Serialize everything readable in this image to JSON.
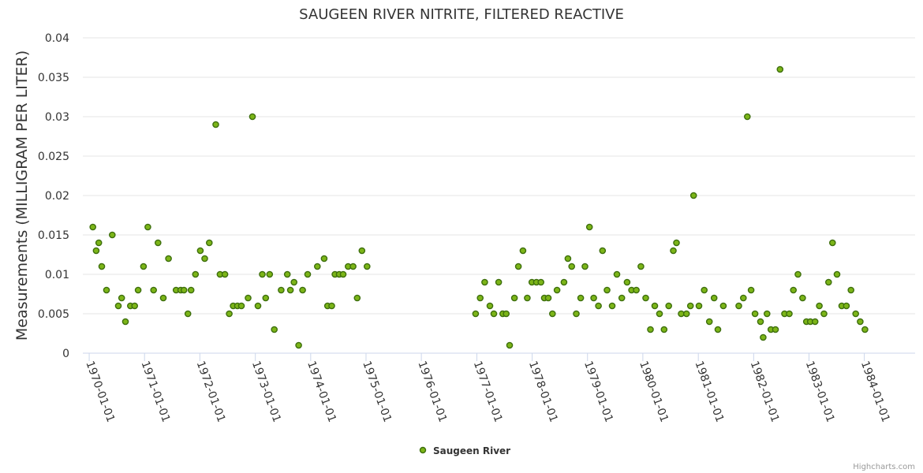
{
  "chart_data": {
    "type": "scatter",
    "title": "SAUGEEN RIVER NITRITE, FILTERED REACTIVE",
    "ylabel": "Measurements (MILLIGRAM PER LITER)",
    "xlabel": "",
    "ylim": [
      0,
      0.04
    ],
    "xlim": [
      "1969-11-20",
      "1984-12-01"
    ],
    "y_ticks": [
      "0",
      "0.005",
      "0.01",
      "0.015",
      "0.02",
      "0.025",
      "0.03",
      "0.035",
      "0.04"
    ],
    "x_ticks": [
      "1970-01-01",
      "1971-01-01",
      "1972-01-01",
      "1973-01-01",
      "1974-01-01",
      "1975-01-01",
      "1976-01-01",
      "1977-01-01",
      "1978-01-01",
      "1979-01-01",
      "1980-01-01",
      "1981-01-01",
      "1982-01-01",
      "1983-01-01",
      "1984-01-01"
    ],
    "grid": true,
    "legend_position": "bottom-center",
    "series_color": "#7cb518",
    "marker_stroke": "#3d6e0d",
    "series": [
      {
        "name": "Saugeen River",
        "points": [
          {
            "x": "1970-01-25",
            "y": 0.016
          },
          {
            "x": "1970-02-16",
            "y": 0.013
          },
          {
            "x": "1970-03-05",
            "y": 0.014
          },
          {
            "x": "1970-03-25",
            "y": 0.011
          },
          {
            "x": "1970-04-25",
            "y": 0.008
          },
          {
            "x": "1970-06-02",
            "y": 0.015
          },
          {
            "x": "1970-07-12",
            "y": 0.006
          },
          {
            "x": "1970-08-03",
            "y": 0.007
          },
          {
            "x": "1970-08-28",
            "y": 0.004
          },
          {
            "x": "1970-09-30",
            "y": 0.006
          },
          {
            "x": "1970-10-28",
            "y": 0.006
          },
          {
            "x": "1970-11-20",
            "y": 0.008
          },
          {
            "x": "1970-12-25",
            "y": 0.011
          },
          {
            "x": "1971-01-23",
            "y": 0.016
          },
          {
            "x": "1971-03-02",
            "y": 0.008
          },
          {
            "x": "1971-03-31",
            "y": 0.014
          },
          {
            "x": "1971-05-05",
            "y": 0.007
          },
          {
            "x": "1971-06-08",
            "y": 0.012
          },
          {
            "x": "1971-07-28",
            "y": 0.008
          },
          {
            "x": "1971-08-28",
            "y": 0.008
          },
          {
            "x": "1971-09-18",
            "y": 0.008
          },
          {
            "x": "1971-10-14",
            "y": 0.005
          },
          {
            "x": "1971-11-04",
            "y": 0.008
          },
          {
            "x": "1971-12-03",
            "y": 0.01
          },
          {
            "x": "1972-01-04",
            "y": 0.013
          },
          {
            "x": "1972-02-02",
            "y": 0.012
          },
          {
            "x": "1972-03-03",
            "y": 0.014
          },
          {
            "x": "1972-04-15",
            "y": 0.029
          },
          {
            "x": "1972-05-13",
            "y": 0.01
          },
          {
            "x": "1972-06-14",
            "y": 0.01
          },
          {
            "x": "1972-07-13",
            "y": 0.005
          },
          {
            "x": "1972-08-08",
            "y": 0.006
          },
          {
            "x": "1972-09-05",
            "y": 0.006
          },
          {
            "x": "1972-10-01",
            "y": 0.006
          },
          {
            "x": "1972-11-14",
            "y": 0.007
          },
          {
            "x": "1972-12-13",
            "y": 0.03
          },
          {
            "x": "1973-01-18",
            "y": 0.006
          },
          {
            "x": "1973-02-16",
            "y": 0.01
          },
          {
            "x": "1973-03-10",
            "y": 0.007
          },
          {
            "x": "1973-04-05",
            "y": 0.01
          },
          {
            "x": "1973-05-06",
            "y": 0.003
          },
          {
            "x": "1973-06-20",
            "y": 0.008
          },
          {
            "x": "1973-07-31",
            "y": 0.01
          },
          {
            "x": "1973-08-20",
            "y": 0.008
          },
          {
            "x": "1973-09-13",
            "y": 0.009
          },
          {
            "x": "1973-10-14",
            "y": 0.001
          },
          {
            "x": "1973-11-09",
            "y": 0.008
          },
          {
            "x": "1973-12-12",
            "y": 0.01
          },
          {
            "x": "1974-02-14",
            "y": 0.011
          },
          {
            "x": "1974-03-31",
            "y": 0.012
          },
          {
            "x": "1974-04-22",
            "y": 0.006
          },
          {
            "x": "1974-05-20",
            "y": 0.006
          },
          {
            "x": "1974-06-10",
            "y": 0.01
          },
          {
            "x": "1974-07-08",
            "y": 0.01
          },
          {
            "x": "1974-08-03",
            "y": 0.01
          },
          {
            "x": "1974-09-05",
            "y": 0.011
          },
          {
            "x": "1974-10-08",
            "y": 0.011
          },
          {
            "x": "1974-11-04",
            "y": 0.007
          },
          {
            "x": "1974-12-05",
            "y": 0.013
          },
          {
            "x": "1975-01-08",
            "y": 0.011
          },
          {
            "x": "1976-12-24",
            "y": 0.005
          },
          {
            "x": "1977-01-23",
            "y": 0.007
          },
          {
            "x": "1977-02-22",
            "y": 0.009
          },
          {
            "x": "1977-03-28",
            "y": 0.006
          },
          {
            "x": "1977-04-23",
            "y": 0.005
          },
          {
            "x": "1977-05-25",
            "y": 0.009
          },
          {
            "x": "1977-06-21",
            "y": 0.005
          },
          {
            "x": "1977-07-14",
            "y": 0.005
          },
          {
            "x": "1977-08-05",
            "y": 0.001
          },
          {
            "x": "1977-09-06",
            "y": 0.007
          },
          {
            "x": "1977-10-02",
            "y": 0.011
          },
          {
            "x": "1977-11-01",
            "y": 0.013
          },
          {
            "x": "1977-11-30",
            "y": 0.007
          },
          {
            "x": "1977-12-30",
            "y": 0.009
          },
          {
            "x": "1978-01-29",
            "y": 0.009
          },
          {
            "x": "1978-02-28",
            "y": 0.009
          },
          {
            "x": "1978-03-22",
            "y": 0.007
          },
          {
            "x": "1978-04-17",
            "y": 0.007
          },
          {
            "x": "1978-05-15",
            "y": 0.005
          },
          {
            "x": "1978-06-14",
            "y": 0.008
          },
          {
            "x": "1978-07-30",
            "y": 0.009
          },
          {
            "x": "1978-08-25",
            "y": 0.012
          },
          {
            "x": "1978-09-19",
            "y": 0.011
          },
          {
            "x": "1978-10-19",
            "y": 0.005
          },
          {
            "x": "1978-11-17",
            "y": 0.007
          },
          {
            "x": "1978-12-15",
            "y": 0.011
          },
          {
            "x": "1979-01-14",
            "y": 0.016
          },
          {
            "x": "1979-02-11",
            "y": 0.007
          },
          {
            "x": "1979-03-14",
            "y": 0.006
          },
          {
            "x": "1979-04-10",
            "y": 0.013
          },
          {
            "x": "1979-05-10",
            "y": 0.008
          },
          {
            "x": "1979-06-13",
            "y": 0.006
          },
          {
            "x": "1979-07-14",
            "y": 0.01
          },
          {
            "x": "1979-08-15",
            "y": 0.007
          },
          {
            "x": "1979-09-19",
            "y": 0.009
          },
          {
            "x": "1979-10-19",
            "y": 0.008
          },
          {
            "x": "1979-11-19",
            "y": 0.008
          },
          {
            "x": "1979-12-19",
            "y": 0.011
          },
          {
            "x": "1980-01-20",
            "y": 0.007
          },
          {
            "x": "1980-02-20",
            "y": 0.003
          },
          {
            "x": "1980-03-20",
            "y": 0.006
          },
          {
            "x": "1980-04-20",
            "y": 0.005
          },
          {
            "x": "1980-05-20",
            "y": 0.003
          },
          {
            "x": "1980-06-20",
            "y": 0.006
          },
          {
            "x": "1980-07-20",
            "y": 0.013
          },
          {
            "x": "1980-08-10",
            "y": 0.014
          },
          {
            "x": "1980-09-10",
            "y": 0.005
          },
          {
            "x": "1980-10-15",
            "y": 0.005
          },
          {
            "x": "1980-11-10",
            "y": 0.006
          },
          {
            "x": "1980-12-01",
            "y": 0.02
          },
          {
            "x": "1981-01-05",
            "y": 0.006
          },
          {
            "x": "1981-02-09",
            "y": 0.008
          },
          {
            "x": "1981-03-15",
            "y": 0.004
          },
          {
            "x": "1981-04-15",
            "y": 0.007
          },
          {
            "x": "1981-05-10",
            "y": 0.003
          },
          {
            "x": "1981-06-15",
            "y": 0.006
          },
          {
            "x": "1981-09-25",
            "y": 0.006
          },
          {
            "x": "1981-10-25",
            "y": 0.007
          },
          {
            "x": "1981-11-20",
            "y": 0.03
          },
          {
            "x": "1981-12-15",
            "y": 0.008
          },
          {
            "x": "1982-01-10",
            "y": 0.005
          },
          {
            "x": "1982-02-15",
            "y": 0.004
          },
          {
            "x": "1982-03-05",
            "y": 0.002
          },
          {
            "x": "1982-03-30",
            "y": 0.005
          },
          {
            "x": "1982-04-25",
            "y": 0.003
          },
          {
            "x": "1982-05-25",
            "y": 0.003
          },
          {
            "x": "1982-06-24",
            "y": 0.036
          },
          {
            "x": "1982-07-24",
            "y": 0.005
          },
          {
            "x": "1982-08-24",
            "y": 0.005
          },
          {
            "x": "1982-09-20",
            "y": 0.008
          },
          {
            "x": "1982-10-20",
            "y": 0.01
          },
          {
            "x": "1982-11-20",
            "y": 0.007
          },
          {
            "x": "1982-12-15",
            "y": 0.004
          },
          {
            "x": "1983-01-10",
            "y": 0.004
          },
          {
            "x": "1983-02-10",
            "y": 0.004
          },
          {
            "x": "1983-03-10",
            "y": 0.006
          },
          {
            "x": "1983-04-10",
            "y": 0.005
          },
          {
            "x": "1983-05-10",
            "y": 0.009
          },
          {
            "x": "1983-06-05",
            "y": 0.014
          },
          {
            "x": "1983-07-05",
            "y": 0.01
          },
          {
            "x": "1983-08-05",
            "y": 0.006
          },
          {
            "x": "1983-09-05",
            "y": 0.006
          },
          {
            "x": "1983-10-05",
            "y": 0.008
          },
          {
            "x": "1983-11-05",
            "y": 0.005
          },
          {
            "x": "1983-12-05",
            "y": 0.004
          },
          {
            "x": "1984-01-05",
            "y": 0.003
          }
        ]
      }
    ]
  },
  "legend": {
    "label": "Saugeen River"
  },
  "credits": {
    "text": "Highcharts.com"
  }
}
